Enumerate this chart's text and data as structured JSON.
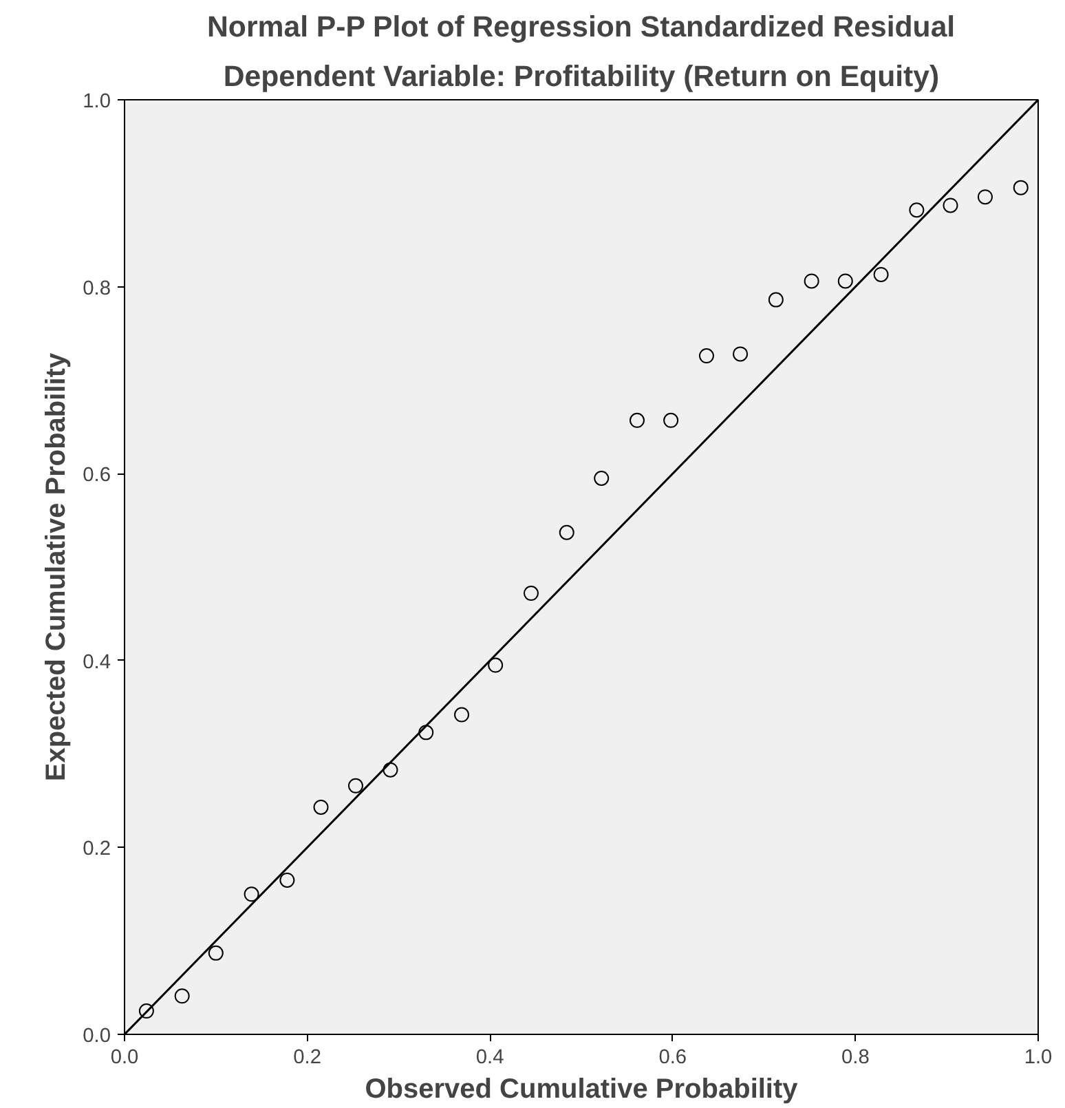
{
  "chart_data": {
    "type": "scatter",
    "title": "Normal P-P Plot of Regression Standardized Residual",
    "subtitle": "Dependent Variable: Profitability (Return on Equity)",
    "xlabel": "Observed Cumulative Probability",
    "ylabel": "Expected Cumulative Probability",
    "xlim": [
      0,
      1
    ],
    "ylim": [
      0,
      1
    ],
    "xticks": [
      {
        "value": 0,
        "label": "0.0"
      },
      0.2,
      0.4,
      0.6,
      0.8,
      {
        "value": 1,
        "label": "1.0"
      }
    ],
    "yticks": [
      {
        "value": 0,
        "label": "0.0"
      },
      0.2,
      0.4,
      0.6,
      0.8,
      {
        "value": 1,
        "label": "1.0"
      }
    ],
    "grid": false,
    "series": [
      {
        "marker": "circle",
        "color": "#000000",
        "x": [
          0.024,
          0.063,
          0.1,
          0.139,
          0.178,
          0.215,
          0.253,
          0.291,
          0.33,
          0.369,
          0.406,
          0.445,
          0.484,
          0.522,
          0.561,
          0.598,
          0.637,
          0.674,
          0.713,
          0.752,
          0.789,
          0.828,
          0.867,
          0.904,
          0.942,
          0.981
        ],
        "values": [
          0.025,
          0.041,
          0.087,
          0.15,
          0.165,
          0.243,
          0.266,
          0.283,
          0.323,
          0.342,
          0.395,
          0.472,
          0.537,
          0.595,
          0.657,
          0.657,
          0.726,
          0.728,
          0.786,
          0.806,
          0.806,
          0.813,
          0.882,
          0.887,
          0.896,
          0.906
        ]
      },
      {
        "type": "line",
        "marker": "none",
        "color": "#000000",
        "x": [
          0,
          1
        ],
        "values": [
          0,
          1
        ]
      }
    ]
  }
}
